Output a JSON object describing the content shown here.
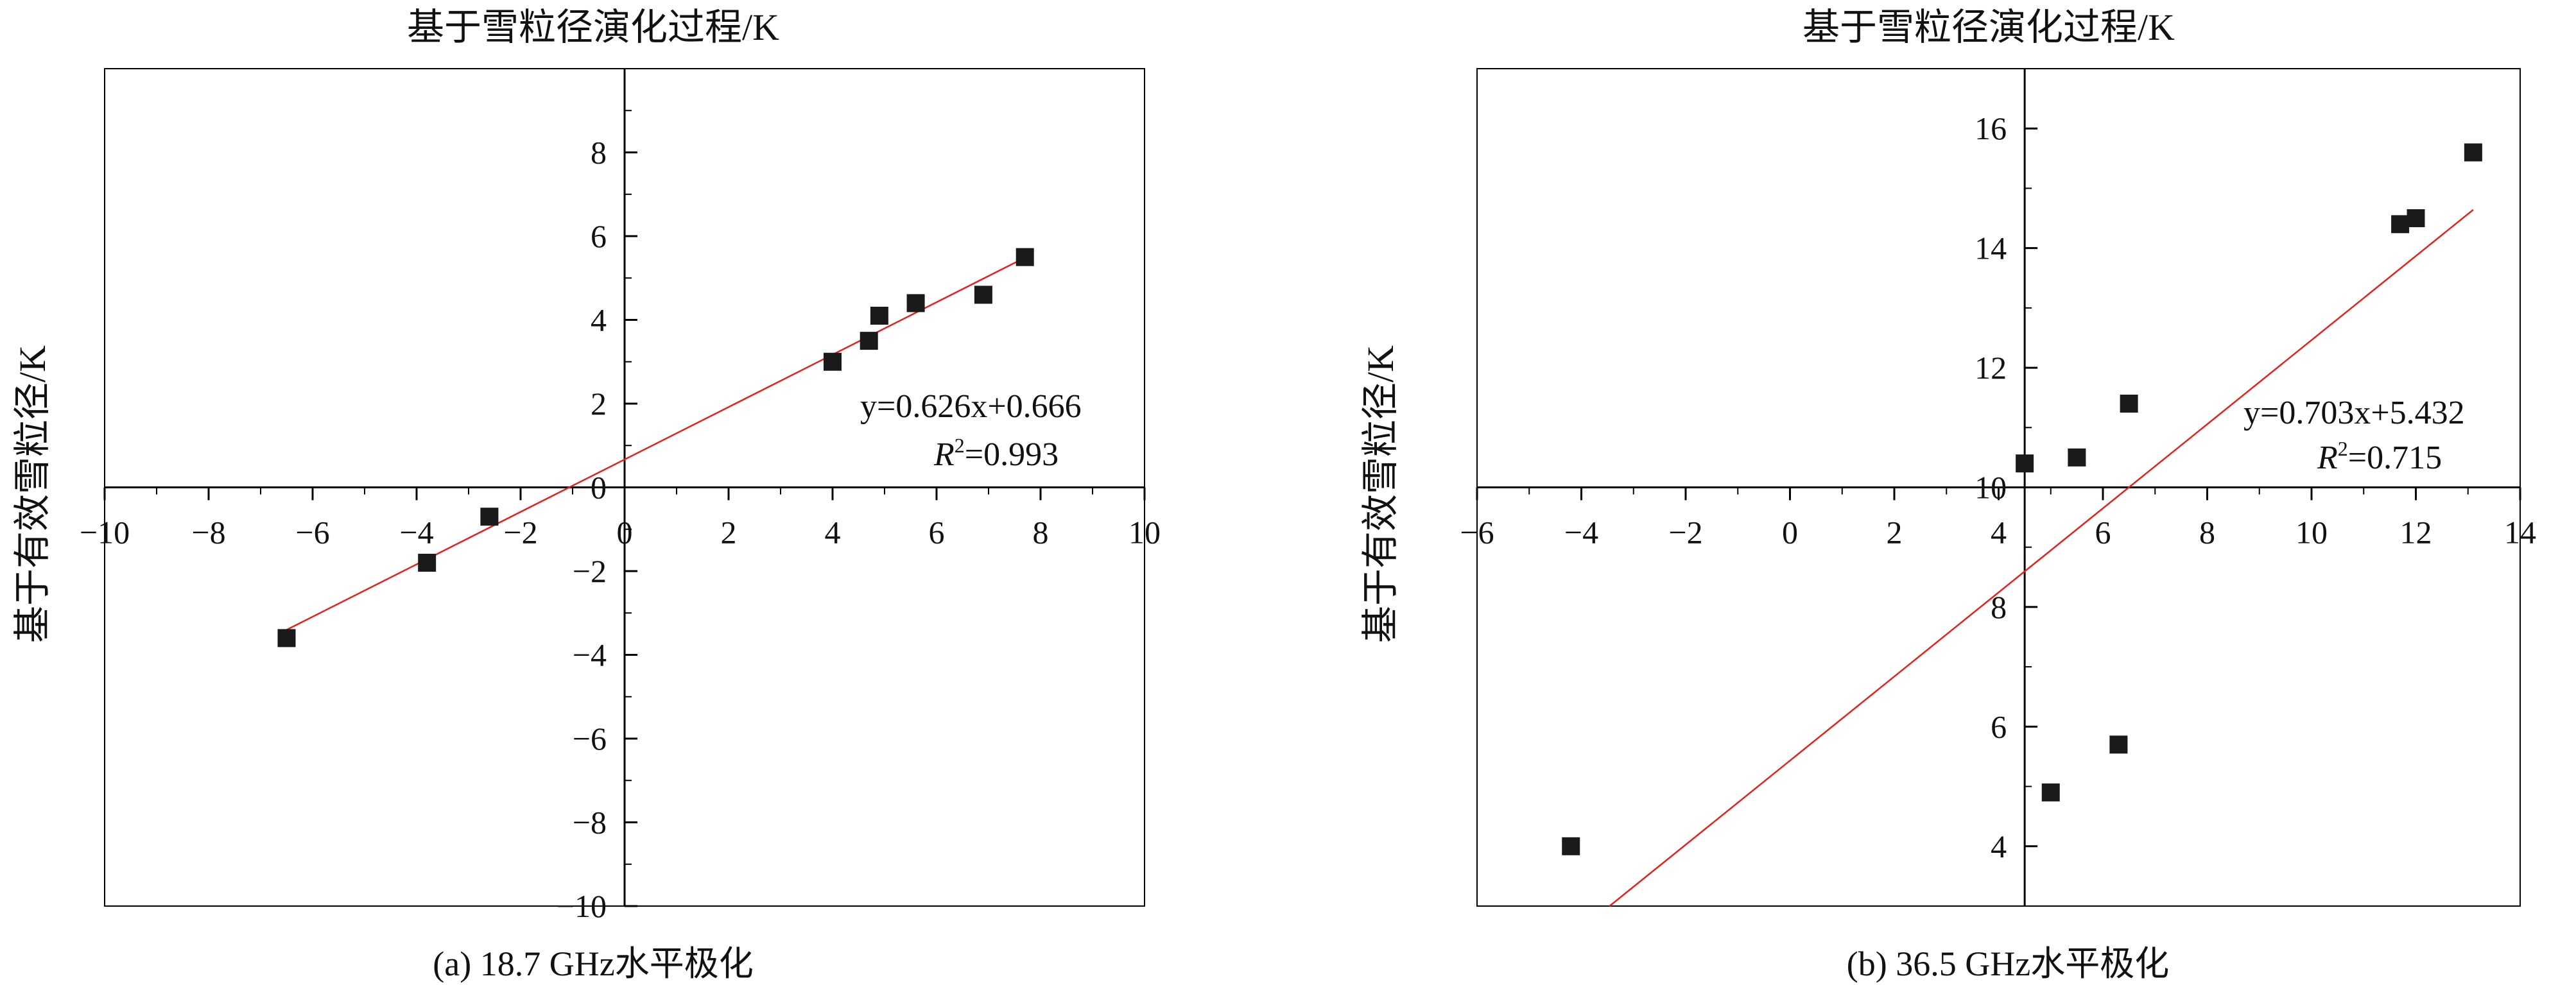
{
  "chart_data": [
    {
      "type": "scatter",
      "title": "基于雪粒径演化过程/K",
      "ylabel": "基于有效雪粒径/K",
      "caption": "(a) 18.7 GHz水平极化",
      "xlim": [
        -10,
        10
      ],
      "ylim": [
        -10,
        10
      ],
      "xticks": [
        -10,
        -8,
        -6,
        -4,
        -2,
        0,
        2,
        4,
        6,
        8,
        10
      ],
      "yticks": [
        -10,
        -8,
        -6,
        -4,
        -2,
        0,
        2,
        4,
        6,
        8
      ],
      "x_tick_labels": [
        "−10",
        "−8",
        "−6",
        "−4",
        "−2",
        "0",
        "2",
        "4",
        "6",
        "8",
        "10"
      ],
      "y_tick_labels": [
        "−10",
        "−8",
        "−6",
        "−4",
        "−2",
        "0",
        "2",
        "4",
        "6",
        "8"
      ],
      "axis_cross": [
        0,
        0
      ],
      "points": [
        {
          "x": -6.5,
          "y": -3.6
        },
        {
          "x": -3.8,
          "y": -1.8
        },
        {
          "x": -2.6,
          "y": -0.7
        },
        {
          "x": 4.0,
          "y": 3.0
        },
        {
          "x": 4.7,
          "y": 3.5
        },
        {
          "x": 4.9,
          "y": 4.1
        },
        {
          "x": 5.6,
          "y": 4.4
        },
        {
          "x": 6.9,
          "y": 4.6
        },
        {
          "x": 7.7,
          "y": 5.5
        }
      ],
      "fit": {
        "slope": 0.626,
        "intercept": 0.666,
        "x_range": [
          -6.5,
          7.8
        ]
      },
      "equation": "y=0.626x+0.666",
      "r2_label": "R",
      "r2_sup": "2",
      "r2_value": "=0.993",
      "colors": {
        "points": "#1a1a1a",
        "fit_line": "#e8201a"
      }
    },
    {
      "type": "scatter",
      "title": "基于雪粒径演化过程/K",
      "ylabel": "基于有效雪粒径/K",
      "caption": "(b) 36.5 GHz水平极化",
      "xlim": [
        -6,
        14
      ],
      "ylim": [
        3,
        17
      ],
      "xticks": [
        -6,
        -4,
        -2,
        0,
        2,
        4,
        6,
        8,
        10,
        12,
        14
      ],
      "yticks": [
        4,
        6,
        8,
        10,
        12,
        14,
        16
      ],
      "x_tick_labels": [
        "−6",
        "−4",
        "−2",
        "0",
        "2",
        "4",
        "6",
        "8",
        "10",
        "12",
        "14"
      ],
      "y_tick_labels": [
        "4",
        "6",
        "8",
        "10",
        "12",
        "14",
        "16"
      ],
      "axis_cross": [
        4.5,
        10
      ],
      "points": [
        {
          "x": -4.2,
          "y": 4.0
        },
        {
          "x": 4.5,
          "y": 10.4
        },
        {
          "x": 5.0,
          "y": 4.9
        },
        {
          "x": 5.5,
          "y": 10.5
        },
        {
          "x": 6.3,
          "y": 5.7
        },
        {
          "x": 6.5,
          "y": 11.4
        },
        {
          "x": 11.7,
          "y": 14.4
        },
        {
          "x": 12.0,
          "y": 14.5
        },
        {
          "x": 13.1,
          "y": 15.6
        }
      ],
      "fit": {
        "slope": 0.703,
        "intercept": 5.432,
        "x_range": [
          -6,
          13.1
        ]
      },
      "equation": "y=0.703x+5.432",
      "r2_label": "R",
      "r2_sup": "2",
      "r2_value": "=0.715",
      "colors": {
        "points": "#1a1a1a",
        "fit_line": "#e8201a"
      }
    }
  ]
}
